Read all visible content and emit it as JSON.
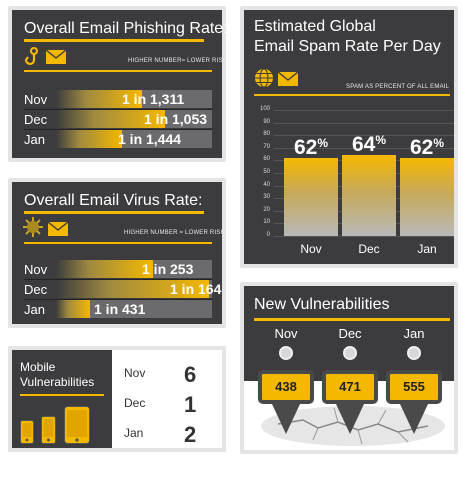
{
  "colors": {
    "panel": "#3c3c3e",
    "accent": "#f5b800",
    "track": "#6b6b6d"
  },
  "phishing": {
    "title": "Overall Email Phishing Rate:",
    "risk_note": "HIGHER NUMBER= LOWER RISK",
    "icons": [
      "hook-icon",
      "envelope-icon"
    ],
    "rows": [
      {
        "month": "Nov",
        "value": "1 in 1,311",
        "fill_fraction": 0.55
      },
      {
        "month": "Dec",
        "value": "1 in 1,053",
        "fill_fraction": 0.7
      },
      {
        "month": "Jan",
        "value": "1 in 1,444",
        "fill_fraction": 0.42
      }
    ]
  },
  "virus": {
    "title": "Overall Email Virus Rate:",
    "risk_note": "HIGHER NUMBER = LOWER RISK",
    "icons": [
      "virus-icon",
      "envelope-icon"
    ],
    "rows": [
      {
        "month": "Nov",
        "value": "1 in 253",
        "fill_fraction": 0.62
      },
      {
        "month": "Dec",
        "value": "1 in 164",
        "fill_fraction": 0.98
      },
      {
        "month": "Jan",
        "value": "1 in 431",
        "fill_fraction": 0.22
      }
    ]
  },
  "mobile": {
    "title_line1": "Mobile",
    "title_line2": "Vulnerabilities",
    "icons": [
      "phone-icon",
      "phone-icon",
      "tablet-icon"
    ],
    "rows": [
      {
        "month": "Nov",
        "count": "6"
      },
      {
        "month": "Dec",
        "count": "1"
      },
      {
        "month": "Jan",
        "count": "2"
      }
    ]
  },
  "spam": {
    "title_line1": "Estimated Global",
    "title_line2": "Email Spam Rate Per Day",
    "note": "SPAM AS PERCENT OF ALL EMAIL",
    "icons": [
      "globe-icon",
      "envelope-icon"
    ],
    "chart_data": {
      "type": "bar",
      "title": "Estimated Global Email Spam Rate Per Day",
      "categories": [
        "Nov",
        "Dec",
        "Jan"
      ],
      "values": [
        62,
        64,
        62
      ],
      "value_labels": [
        "62",
        "64",
        "62"
      ],
      "value_unit": "%",
      "ylabel": "SPAM AS PERCENT OF ALL EMAIL",
      "ylim": [
        0,
        100
      ],
      "yticks": [
        "100",
        "90",
        "80",
        "70",
        "60",
        "50",
        "40",
        "30",
        "20",
        "10",
        "0"
      ],
      "grid": true
    }
  },
  "vulns": {
    "title": "New Vulnerabilities",
    "items": [
      {
        "month": "Nov",
        "count": "438"
      },
      {
        "month": "Dec",
        "count": "471"
      },
      {
        "month": "Jan",
        "count": "555"
      }
    ]
  }
}
